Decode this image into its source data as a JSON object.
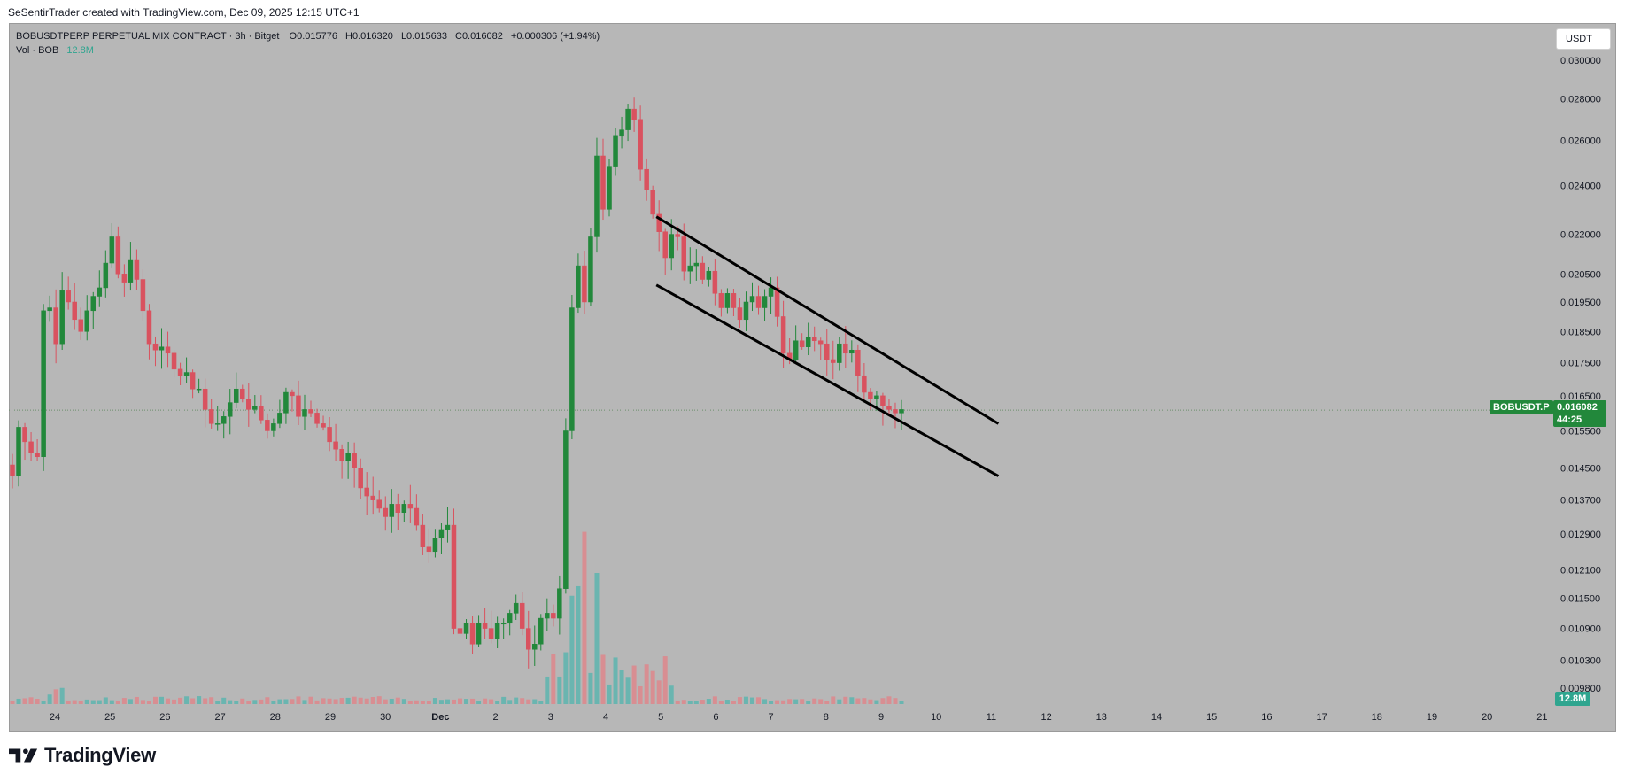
{
  "header": {
    "attribution": "SeSentirTrader created with TradingView.com, Dec 09, 2025 12:15 UTC+1"
  },
  "legend": {
    "symbol": "BOBUSDTPERP PERPETUAL MIX CONTRACT · 3h · Bitget",
    "open": "O0.015776",
    "high": "H0.016320",
    "low": "L0.015633",
    "close": "C0.016082",
    "change": "+0.000306 (+1.94%)",
    "vol_label": "Vol · BOB",
    "vol_value": "12.8M"
  },
  "currency_button": "USDT",
  "last_price": {
    "symbol": "BOBUSDT.P",
    "price": "0.016082",
    "countdown": "44:25",
    "volume": "12.8M"
  },
  "brand": "TradingView",
  "colors": {
    "up": "#22883b",
    "down": "#d9525f",
    "vol_up": "#6ab5b0",
    "vol_down": "#d88e92",
    "background": "#b7b7b7"
  },
  "chart_data": {
    "type": "candlestick",
    "y_scale": "log",
    "y_ticks": [
      "0.030000",
      "0.028000",
      "0.026000",
      "0.024000",
      "0.022000",
      "0.020500",
      "0.019500",
      "0.018500",
      "0.017500",
      "0.016500",
      "0.015500",
      "0.014500",
      "0.013700",
      "0.012900",
      "0.012100",
      "0.011500",
      "0.010900",
      "0.010300",
      "0.009800"
    ],
    "x_ticks": [
      "24",
      "25",
      "26",
      "27",
      "28",
      "29",
      "30",
      "Dec",
      "2",
      "3",
      "4",
      "5",
      "6",
      "7",
      "8",
      "9",
      "10",
      "11",
      "12",
      "13",
      "14",
      "15",
      "16",
      "17",
      "18",
      "19",
      "20",
      "21"
    ],
    "candles_close": [
      0.0143,
      0.0156,
      0.0152,
      0.0149,
      0.0148,
      0.0192,
      0.0193,
      0.0181,
      0.0199,
      0.0195,
      0.0189,
      0.0185,
      0.0192,
      0.0197,
      0.02,
      0.0209,
      0.0219,
      0.0205,
      0.0202,
      0.021,
      0.0203,
      0.0192,
      0.0181,
      0.0179,
      0.018,
      0.0178,
      0.0173,
      0.0171,
      0.0172,
      0.0167,
      0.0167,
      0.0161,
      0.0157,
      0.0157,
      0.0159,
      0.0163,
      0.0167,
      0.0164,
      0.0161,
      0.0162,
      0.0158,
      0.0155,
      0.0157,
      0.016,
      0.0166,
      0.0165,
      0.0159,
      0.0161,
      0.016,
      0.0157,
      0.0156,
      0.0152,
      0.015,
      0.0147,
      0.0149,
      0.0145,
      0.014,
      0.0138,
      0.0137,
      0.0135,
      0.0133,
      0.0136,
      0.0134,
      0.0136,
      0.0135,
      0.0131,
      0.0126,
      0.0125,
      0.0128,
      0.013,
      0.0131,
      0.0109,
      0.0108,
      0.011,
      0.0106,
      0.011,
      0.0109,
      0.0107,
      0.011,
      0.011,
      0.0112,
      0.0114,
      0.0109,
      0.0105,
      0.0106,
      0.0111,
      0.0112,
      0.0111,
      0.0117,
      0.0155,
      0.0193,
      0.0208,
      0.0195,
      0.0219,
      0.0253,
      0.023,
      0.0248,
      0.0262,
      0.0265,
      0.0275,
      0.027,
      0.0247,
      0.0238,
      0.0228,
      0.0221,
      0.0211,
      0.022,
      0.0219,
      0.0206,
      0.0208,
      0.0209,
      0.0203,
      0.0206,
      0.0198,
      0.0193,
      0.0198,
      0.0193,
      0.0189,
      0.0195,
      0.0197,
      0.0193,
      0.0197,
      0.02,
      0.019,
      0.0178,
      0.0176,
      0.0182,
      0.018,
      0.0183,
      0.0182,
      0.0181,
      0.0176,
      0.0175,
      0.0181,
      0.0178,
      0.0179,
      0.0171,
      0.0166,
      0.0164,
      0.0165,
      0.0162,
      0.0161,
      0.016,
      0.0161
    ],
    "volume_peak": "12.8M",
    "annotations": [
      {
        "type": "trendline",
        "name": "channel-upper",
        "from": {
          "x": "Dec 5",
          "y": 0.0227
        },
        "to": {
          "x": "Dec 11",
          "y": 0.0157
        }
      },
      {
        "type": "trendline",
        "name": "channel-lower",
        "from": {
          "x": "Dec 5",
          "y": 0.0201
        },
        "to": {
          "x": "Dec 11",
          "y": 0.0143
        }
      }
    ],
    "last_price_line": 0.016082
  }
}
